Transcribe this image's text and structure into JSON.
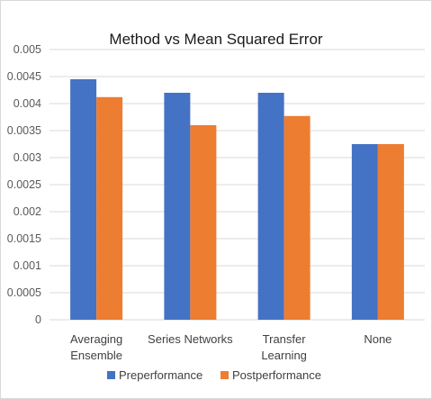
{
  "chart_data": {
    "type": "bar",
    "title": "Method vs Mean Squared Error",
    "xlabel": "",
    "ylabel": "",
    "categories": [
      [
        "Averaging",
        "Ensemble"
      ],
      [
        "Series Networks"
      ],
      [
        "Transfer",
        "Learning"
      ],
      [
        "None"
      ]
    ],
    "series": [
      {
        "name": "Preperformance",
        "color": "#4472C4",
        "values": [
          0.00445,
          0.0042,
          0.0042,
          0.00325
        ]
      },
      {
        "name": "Postperformance",
        "color": "#ED7D31",
        "values": [
          0.00412,
          0.0036,
          0.00377,
          0.00325
        ]
      }
    ],
    "ylim": [
      0,
      0.005
    ],
    "yticks": [
      {
        "value": 0,
        "label": "0"
      },
      {
        "value": 0.0005,
        "label": "0.0005"
      },
      {
        "value": 0.001,
        "label": "0.001"
      },
      {
        "value": 0.0015,
        "label": "0.0015"
      },
      {
        "value": 0.002,
        "label": "0.002"
      },
      {
        "value": 0.0025,
        "label": "0.0025"
      },
      {
        "value": 0.003,
        "label": "0.003"
      },
      {
        "value": 0.0035,
        "label": "0.0035"
      },
      {
        "value": 0.004,
        "label": "0.004"
      },
      {
        "value": 0.0045,
        "label": "0.0045"
      },
      {
        "value": 0.005,
        "label": "0.005"
      }
    ],
    "grid": true,
    "legend": "bottom",
    "gridline_color": "#d9d9d9"
  }
}
